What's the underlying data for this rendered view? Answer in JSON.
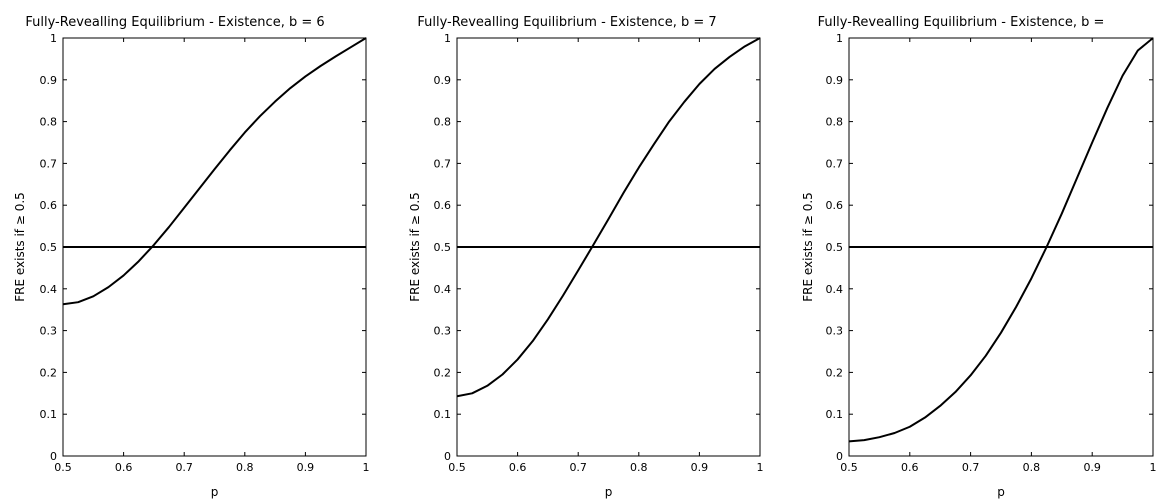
{
  "chart_data": [
    {
      "type": "line",
      "title": "Fully-Revealling Equilibrium - Existence, b = 6",
      "xlabel": "p",
      "ylabel": "FRE exists if ≥ 0.5",
      "xlim": [
        0.5,
        1
      ],
      "ylim": [
        0,
        1
      ],
      "xticks": [
        "0.5",
        "0.6",
        "0.7",
        "0.8",
        "0.9",
        "1"
      ],
      "yticks": [
        "0",
        "0.1",
        "0.2",
        "0.3",
        "0.4",
        "0.5",
        "0.6",
        "0.7",
        "0.8",
        "0.9",
        "1"
      ],
      "grid": false,
      "reference_line": 0.5,
      "series": [
        {
          "x": [
            0.5,
            0.525,
            0.55,
            0.575,
            0.6,
            0.625,
            0.65,
            0.675,
            0.7,
            0.725,
            0.75,
            0.775,
            0.8,
            0.825,
            0.85,
            0.875,
            0.9,
            0.925,
            0.95,
            0.975,
            1.0
          ],
          "y": [
            0.363,
            0.368,
            0.382,
            0.404,
            0.432,
            0.466,
            0.505,
            0.548,
            0.594,
            0.64,
            0.686,
            0.731,
            0.774,
            0.813,
            0.848,
            0.88,
            0.908,
            0.933,
            0.956,
            0.978,
            1.0
          ]
        }
      ]
    },
    {
      "type": "line",
      "title": "Fully-Revealling Equilibrium - Existence, b = 7",
      "xlabel": "p",
      "ylabel": "FRE exists if ≥ 0.5",
      "xlim": [
        0.5,
        1
      ],
      "ylim": [
        0,
        1
      ],
      "xticks": [
        "0.5",
        "0.6",
        "0.7",
        "0.8",
        "0.9",
        "1"
      ],
      "yticks": [
        "0",
        "0.1",
        "0.2",
        "0.3",
        "0.4",
        "0.5",
        "0.6",
        "0.7",
        "0.8",
        "0.9",
        "1"
      ],
      "grid": false,
      "reference_line": 0.5,
      "series": [
        {
          "x": [
            0.5,
            0.525,
            0.55,
            0.575,
            0.6,
            0.625,
            0.65,
            0.675,
            0.7,
            0.725,
            0.75,
            0.775,
            0.8,
            0.825,
            0.85,
            0.875,
            0.9,
            0.925,
            0.95,
            0.975,
            1.0
          ],
          "y": [
            0.143,
            0.15,
            0.168,
            0.195,
            0.231,
            0.275,
            0.327,
            0.384,
            0.444,
            0.505,
            0.567,
            0.63,
            0.69,
            0.746,
            0.8,
            0.847,
            0.89,
            0.926,
            0.955,
            0.98,
            1.0
          ]
        }
      ]
    },
    {
      "type": "line",
      "title": "Fully-Revealling Equilibrium - Existence, b =",
      "xlabel": "p",
      "ylabel": "FRE exists if ≥ 0.5",
      "xlim": [
        0.5,
        1
      ],
      "ylim": [
        0,
        1
      ],
      "xticks": [
        "0.5",
        "0.6",
        "0.7",
        "0.8",
        "0.9",
        "1"
      ],
      "yticks": [
        "0",
        "0.1",
        "0.2",
        "0.3",
        "0.4",
        "0.5",
        "0.6",
        "0.7",
        "0.8",
        "0.9",
        "1"
      ],
      "grid": false,
      "reference_line": 0.5,
      "series": [
        {
          "x": [
            0.5,
            0.525,
            0.55,
            0.575,
            0.6,
            0.625,
            0.65,
            0.675,
            0.7,
            0.725,
            0.75,
            0.775,
            0.8,
            0.825,
            0.85,
            0.875,
            0.9,
            0.925,
            0.95,
            0.975,
            1.0
          ],
          "y": [
            0.035,
            0.038,
            0.045,
            0.055,
            0.07,
            0.092,
            0.12,
            0.153,
            0.193,
            0.24,
            0.295,
            0.357,
            0.425,
            0.5,
            0.58,
            0.665,
            0.75,
            0.833,
            0.91,
            0.97,
            1.0
          ]
        }
      ]
    }
  ]
}
